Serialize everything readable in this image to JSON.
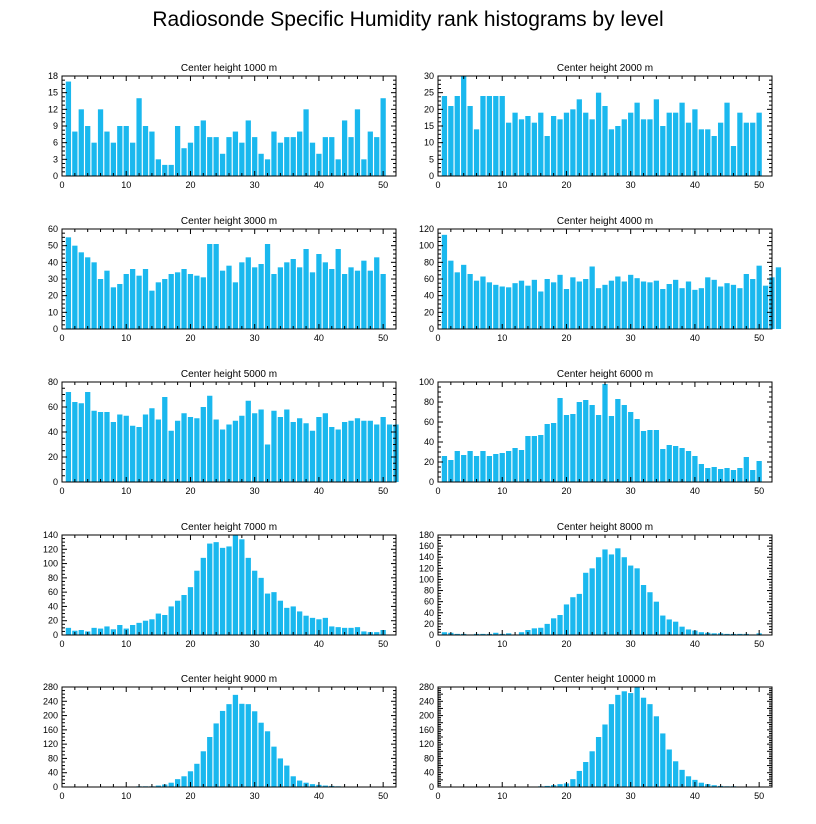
{
  "title": "Radiosonde Specific Humidity rank histograms by level",
  "colors": {
    "bar": "#1ab8ee",
    "axis": "#000000"
  },
  "chart_data": [
    {
      "type": "bar",
      "title": "Center height 1000 m",
      "xlim": [
        0,
        52
      ],
      "ylim": [
        0,
        18
      ],
      "xticks": [
        0,
        10,
        20,
        30,
        40,
        50
      ],
      "yticks": [
        0,
        3,
        6,
        9,
        12,
        15,
        18
      ],
      "values": [
        17,
        8,
        12,
        9,
        6,
        12,
        8,
        6,
        9,
        9,
        6,
        14,
        9,
        8,
        3,
        2,
        2,
        9,
        5,
        6,
        9,
        10,
        7,
        7,
        4,
        7,
        8,
        6,
        10,
        7,
        4,
        3,
        8,
        6,
        7,
        7,
        8,
        12,
        6,
        4,
        7,
        7,
        3,
        10,
        7,
        12,
        3,
        8,
        7,
        14
      ]
    },
    {
      "type": "bar",
      "title": "Center height 2000 m",
      "xlim": [
        0,
        52
      ],
      "ylim": [
        0,
        30
      ],
      "xticks": [
        0,
        10,
        20,
        30,
        40,
        50
      ],
      "yticks": [
        0,
        5,
        10,
        15,
        20,
        25,
        30
      ],
      "values": [
        24,
        21,
        24,
        30,
        21,
        14,
        24,
        24,
        24,
        24,
        16,
        19,
        17,
        18,
        16,
        19,
        12,
        18,
        17,
        19,
        20,
        23,
        19,
        17,
        25,
        21,
        14,
        15,
        17,
        19,
        22,
        17,
        17,
        23,
        15,
        19,
        19,
        22,
        16,
        20,
        14,
        14,
        12,
        16,
        22,
        9,
        19,
        16,
        16,
        19
      ]
    },
    {
      "type": "bar",
      "title": "Center height 3000 m",
      "xlim": [
        0,
        52
      ],
      "ylim": [
        0,
        60
      ],
      "xticks": [
        0,
        10,
        20,
        30,
        40,
        50
      ],
      "yticks": [
        0,
        10,
        20,
        30,
        40,
        50,
        60
      ],
      "values": [
        55,
        50,
        46,
        43,
        40,
        30,
        35,
        25,
        27,
        33,
        36,
        32,
        36,
        23,
        28,
        30,
        33,
        34,
        36,
        33,
        32,
        31,
        51,
        51,
        35,
        38,
        28,
        40,
        43,
        37,
        39,
        51,
        33,
        37,
        40,
        42,
        37,
        48,
        34,
        45,
        40,
        36,
        48,
        33,
        37,
        35,
        41,
        35,
        43,
        33
      ]
    },
    {
      "type": "bar",
      "title": "Center height 4000 m",
      "xlim": [
        0,
        52
      ],
      "ylim": [
        0,
        120
      ],
      "xticks": [
        0,
        10,
        20,
        30,
        40,
        50
      ],
      "yticks": [
        0,
        20,
        40,
        60,
        80,
        100,
        120
      ],
      "values": [
        113,
        82,
        68,
        77,
        66,
        58,
        63,
        56,
        53,
        51,
        50,
        55,
        58,
        52,
        59,
        45,
        60,
        56,
        65,
        48,
        62,
        57,
        60,
        75,
        49,
        53,
        58,
        63,
        57,
        65,
        61,
        57,
        56,
        58,
        48,
        54,
        59,
        49,
        57,
        47,
        49,
        62,
        59,
        51,
        55,
        53,
        49,
        66,
        60,
        76,
        52,
        62,
        74
      ]
    },
    {
      "type": "bar",
      "title": "Center height 5000 m",
      "xlim": [
        0,
        52
      ],
      "ylim": [
        0,
        80
      ],
      "xticks": [
        0,
        10,
        20,
        30,
        40,
        50
      ],
      "yticks": [
        0,
        20,
        40,
        60,
        80
      ],
      "values": [
        72,
        64,
        63,
        72,
        57,
        56,
        56,
        48,
        54,
        53,
        45,
        44,
        54,
        59,
        50,
        68,
        41,
        49,
        55,
        52,
        51,
        60,
        69,
        50,
        42,
        46,
        49,
        53,
        65,
        55,
        58,
        30,
        57,
        52,
        58,
        48,
        51,
        47,
        41,
        52,
        55,
        44,
        42,
        48,
        49,
        51,
        49,
        49,
        46,
        52,
        46,
        46
      ]
    },
    {
      "type": "bar",
      "title": "Center height 6000 m",
      "xlim": [
        0,
        52
      ],
      "ylim": [
        0,
        100
      ],
      "xticks": [
        0,
        10,
        20,
        30,
        40,
        50
      ],
      "yticks": [
        0,
        20,
        40,
        60,
        80,
        100
      ],
      "values": [
        26,
        22,
        31,
        27,
        31,
        26,
        31,
        26,
        28,
        29,
        31,
        34,
        32,
        46,
        46,
        47,
        58,
        59,
        84,
        67,
        68,
        80,
        82,
        77,
        67,
        98,
        66,
        83,
        77,
        70,
        63,
        51,
        52,
        52,
        33,
        37,
        36,
        34,
        31,
        26,
        18,
        14,
        15,
        13,
        14,
        12,
        14,
        25,
        12,
        21
      ]
    },
    {
      "type": "bar",
      "title": "Center height 7000 m",
      "xlim": [
        0,
        52
      ],
      "ylim": [
        0,
        140
      ],
      "xticks": [
        0,
        10,
        20,
        30,
        40,
        50
      ],
      "yticks": [
        0,
        20,
        40,
        60,
        80,
        100,
        120,
        140
      ],
      "values": [
        10,
        6,
        7,
        5,
        10,
        9,
        12,
        8,
        14,
        9,
        14,
        17,
        20,
        22,
        30,
        28,
        40,
        48,
        56,
        67,
        90,
        108,
        128,
        130,
        122,
        124,
        140,
        134,
        108,
        90,
        80,
        58,
        60,
        48,
        38,
        40,
        33,
        27,
        24,
        22,
        24,
        12,
        11,
        10,
        10,
        11,
        5,
        4,
        4,
        7
      ]
    },
    {
      "type": "bar",
      "title": "Center height 8000 m",
      "xlim": [
        0,
        52
      ],
      "ylim": [
        0,
        180
      ],
      "xticks": [
        0,
        10,
        20,
        30,
        40,
        50
      ],
      "yticks": [
        0,
        20,
        40,
        60,
        80,
        100,
        120,
        140,
        160,
        180
      ],
      "values": [
        5,
        4,
        2,
        2,
        1,
        2,
        2,
        2,
        4,
        2,
        3,
        1,
        5,
        9,
        12,
        13,
        20,
        30,
        36,
        55,
        68,
        74,
        112,
        120,
        140,
        154,
        145,
        156,
        140,
        125,
        120,
        90,
        77,
        60,
        35,
        28,
        24,
        15,
        10,
        8,
        5,
        4,
        3,
        3,
        2,
        2,
        2,
        2,
        1,
        3
      ]
    },
    {
      "type": "bar",
      "title": "Center height 9000 m",
      "xlim": [
        0,
        52
      ],
      "ylim": [
        0,
        280
      ],
      "xticks": [
        0,
        10,
        20,
        30,
        40,
        50
      ],
      "yticks": [
        0,
        40,
        80,
        120,
        160,
        200,
        240,
        280
      ],
      "values": [
        0,
        0,
        0,
        0,
        0,
        0,
        1,
        1,
        1,
        1,
        1,
        2,
        2,
        2,
        4,
        7,
        12,
        22,
        30,
        44,
        65,
        100,
        140,
        178,
        213,
        232,
        258,
        233,
        232,
        212,
        180,
        156,
        113,
        80,
        60,
        30,
        18,
        12,
        8,
        6,
        4,
        3,
        2,
        1,
        1,
        1,
        0,
        0,
        0,
        0,
        0
      ]
    },
    {
      "type": "bar",
      "title": "Center height 10000 m",
      "xlim": [
        0,
        52
      ],
      "ylim": [
        0,
        280
      ],
      "xticks": [
        0,
        10,
        20,
        30,
        40,
        50
      ],
      "yticks": [
        0,
        20,
        40,
        60,
        80,
        100,
        120,
        140,
        160,
        180,
        200,
        220,
        240,
        260,
        280
      ],
      "yticklabels": [
        0,
        40,
        80,
        120,
        160,
        200,
        240,
        280
      ],
      "values": [
        0,
        0,
        0,
        0,
        0,
        0,
        0,
        0,
        0,
        0,
        0,
        0,
        1,
        1,
        1,
        2,
        3,
        5,
        8,
        10,
        22,
        45,
        70,
        100,
        140,
        175,
        232,
        258,
        268,
        263,
        280,
        250,
        232,
        198,
        150,
        105,
        72,
        48,
        30,
        20,
        12,
        8,
        5,
        3,
        2,
        2,
        1,
        1,
        1,
        1,
        0
      ]
    }
  ]
}
